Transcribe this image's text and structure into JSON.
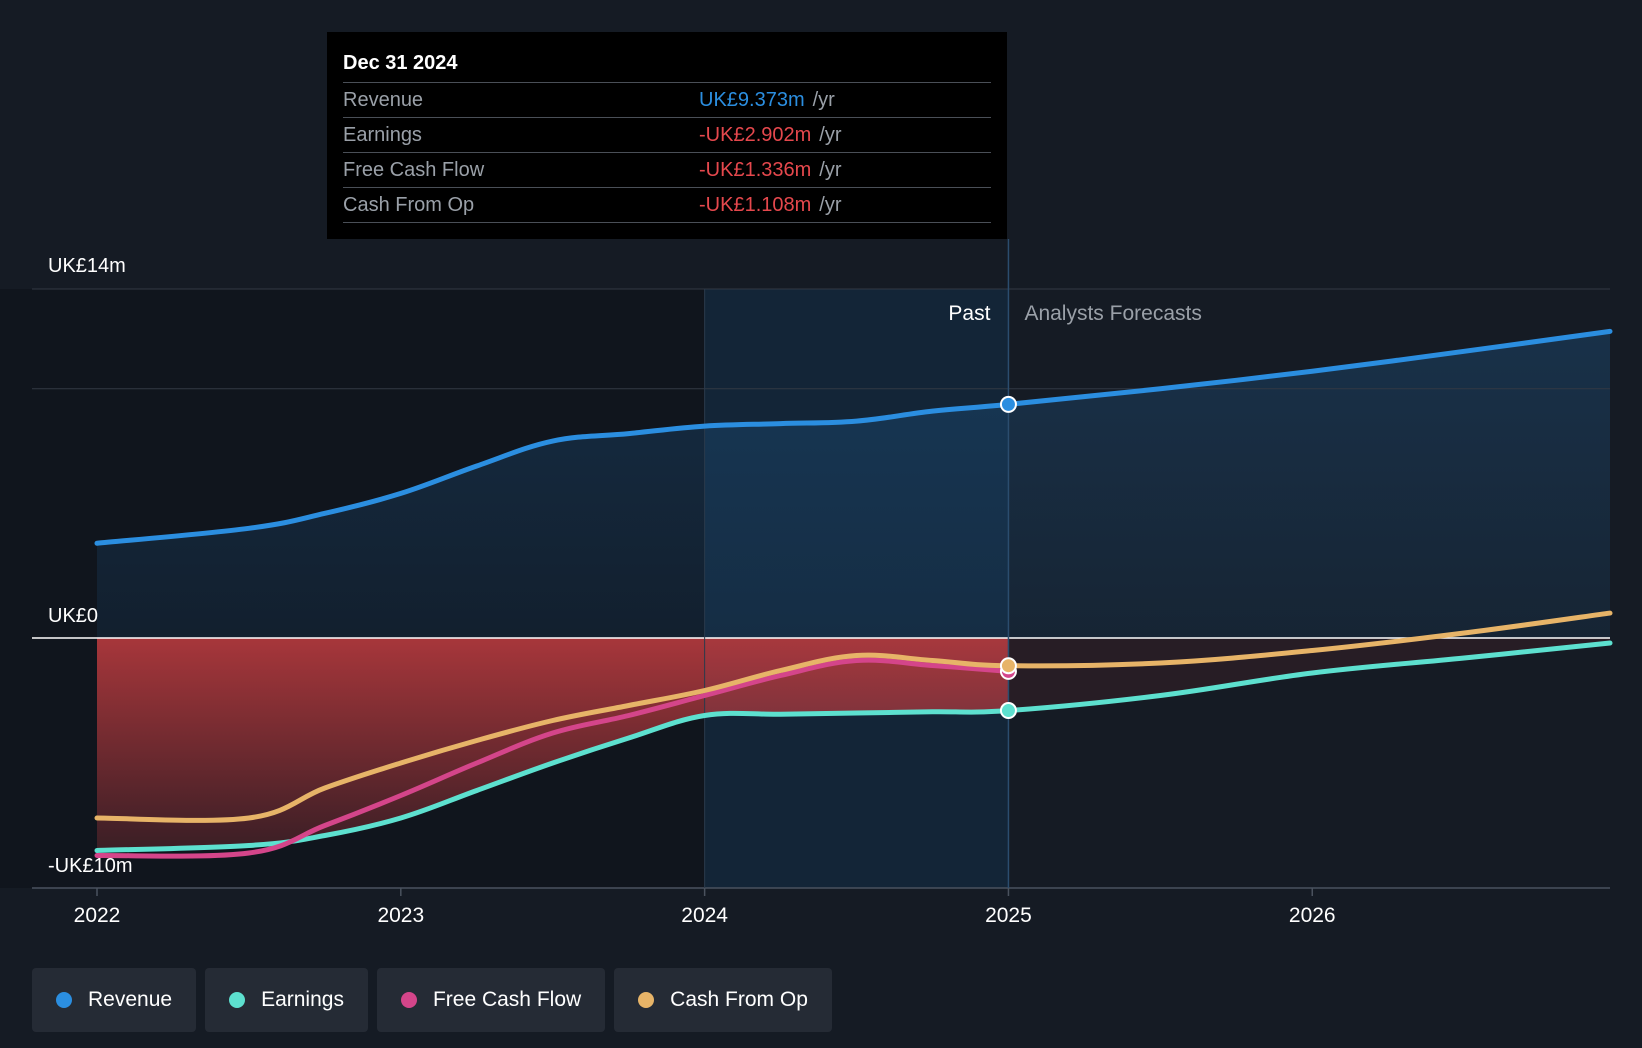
{
  "chart_data": {
    "type": "line",
    "currency_unit": "UK£m",
    "y_labels": {
      "top": "UK£14m",
      "zero": "UK£0",
      "bottom": "-UK£10m"
    },
    "ylim": [
      -10,
      14
    ],
    "xlim": [
      2022,
      2026.98
    ],
    "x_ticks": [
      {
        "value": 2022,
        "label": "2022"
      },
      {
        "value": 2023,
        "label": "2023"
      },
      {
        "value": 2024,
        "label": "2024"
      },
      {
        "value": 2025,
        "label": "2025"
      },
      {
        "value": 2026,
        "label": "2026"
      }
    ],
    "gridlines": [
      14,
      10,
      0
    ],
    "past_label": "Past",
    "forecast_label": "Analysts Forecasts",
    "divider_x": 2025,
    "highlight_start": 2024,
    "series": [
      {
        "name": "Revenue",
        "color": "#2b8ee0",
        "x": [
          2022,
          2022.5,
          2022.75,
          2023,
          2023.25,
          2023.5,
          2023.75,
          2024,
          2024.25,
          2024.5,
          2024.75,
          2025,
          2025.5,
          2026,
          2026.5,
          2026.98
        ],
        "y": [
          3.8,
          4.4,
          5.0,
          5.8,
          6.9,
          7.9,
          8.2,
          8.5,
          8.6,
          8.7,
          9.1,
          9.373,
          10.0,
          10.7,
          11.5,
          12.3
        ]
      },
      {
        "name": "Earnings",
        "color": "#5de0cf",
        "x": [
          2022,
          2022.5,
          2022.75,
          2023,
          2023.25,
          2023.5,
          2023.75,
          2024,
          2024.25,
          2024.5,
          2024.75,
          2025,
          2025.5,
          2026,
          2026.5,
          2026.98
        ],
        "y": [
          -8.5,
          -8.3,
          -7.9,
          -7.2,
          -6.1,
          -5.0,
          -4.0,
          -3.1,
          -3.05,
          -3.0,
          -2.95,
          -2.902,
          -2.3,
          -1.4,
          -0.8,
          -0.2
        ]
      },
      {
        "name": "Free Cash Flow",
        "color": "#d4458a",
        "x": [
          2022,
          2022.5,
          2022.75,
          2023,
          2023.25,
          2023.5,
          2023.75,
          2024,
          2024.25,
          2024.5,
          2024.75,
          2025
        ],
        "y": [
          -8.7,
          -8.6,
          -7.5,
          -6.3,
          -5.0,
          -3.8,
          -3.1,
          -2.3,
          -1.5,
          -0.9,
          -1.1,
          -1.336
        ]
      },
      {
        "name": "Cash From Op",
        "color": "#e7b468",
        "x": [
          2022,
          2022.5,
          2022.75,
          2023,
          2023.25,
          2023.5,
          2023.75,
          2024,
          2024.25,
          2024.5,
          2024.75,
          2025,
          2025.5,
          2026,
          2026.5,
          2026.98
        ],
        "y": [
          -7.2,
          -7.2,
          -6.0,
          -5.0,
          -4.1,
          -3.3,
          -2.7,
          -2.1,
          -1.3,
          -0.7,
          -0.9,
          -1.108,
          -1.0,
          -0.5,
          0.2,
          1.0
        ]
      }
    ],
    "tooltip": {
      "date": "Dec 31 2024",
      "rows": [
        {
          "label": "Revenue",
          "value": "UK£9.373m",
          "unit": "/yr",
          "color": "#2b8ee0"
        },
        {
          "label": "Earnings",
          "value": "-UK£2.902m",
          "unit": "/yr",
          "color": "#e5484d"
        },
        {
          "label": "Free Cash Flow",
          "value": "-UK£1.336m",
          "unit": "/yr",
          "color": "#e5484d"
        },
        {
          "label": "Cash From Op",
          "value": "-UK£1.108m",
          "unit": "/yr",
          "color": "#e5484d"
        }
      ]
    }
  },
  "legend": [
    {
      "label": "Revenue",
      "color": "#2b8ee0"
    },
    {
      "label": "Earnings",
      "color": "#5de0cf"
    },
    {
      "label": "Free Cash Flow",
      "color": "#d4458a"
    },
    {
      "label": "Cash From Op",
      "color": "#e7b468"
    }
  ]
}
